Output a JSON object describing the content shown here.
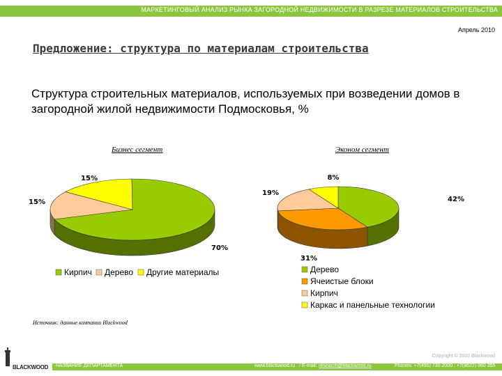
{
  "header": {
    "text": "МАРКЕТИНГОВЫЙ АНАЛИЗ РЫНКА ЗАГОРОДНОЙ НЕДВИЖИМОСТИ В РАЗРЕЗЕ МАТЕРИАЛОВ СТРОИТЕЛЬСТВА",
    "date": "Апрель 2010"
  },
  "slide": {
    "title": "Предложение: структура по материалам строительства",
    "subtitle": "Структура строительных материалов, используемых при возведении домов в загородной жилой недвижимости Подмосковья, %",
    "source": "Источник: данные компании Blackwood"
  },
  "chart_data": [
    {
      "type": "pie",
      "title": "Бизнес сегмент",
      "unit": "%",
      "labels": [
        "Кирпич",
        "Дерево",
        "Другие материалы"
      ],
      "values": [
        70,
        15,
        15
      ],
      "colors": [
        "#99cc00",
        "#ffcc99",
        "#ffff00"
      ],
      "legend": "bottom"
    },
    {
      "type": "pie",
      "title": "Эконом сегмент",
      "unit": "%",
      "labels": [
        "Дерево",
        "Ячеистые блоки",
        "Кирпич",
        "Каркас и панельные технологии"
      ],
      "values": [
        42,
        31,
        19,
        8
      ],
      "colors": [
        "#99cc00",
        "#ff9900",
        "#ffcc99",
        "#ffff00"
      ],
      "legend": "bottom"
    }
  ],
  "footer": {
    "copyright": "Copyright © 2010 Blackwood",
    "logo": "BLACKWOOD",
    "department": "НАЗВАНИЕ ДЕПАРТАМЕНТА",
    "site": "www.blackwood.ru",
    "email_label": "/ E-mail:",
    "email": "research@blackwood.ru",
    "phones": "Phones: +7(495) 730 2000 ; +7(8622) 960 355"
  }
}
